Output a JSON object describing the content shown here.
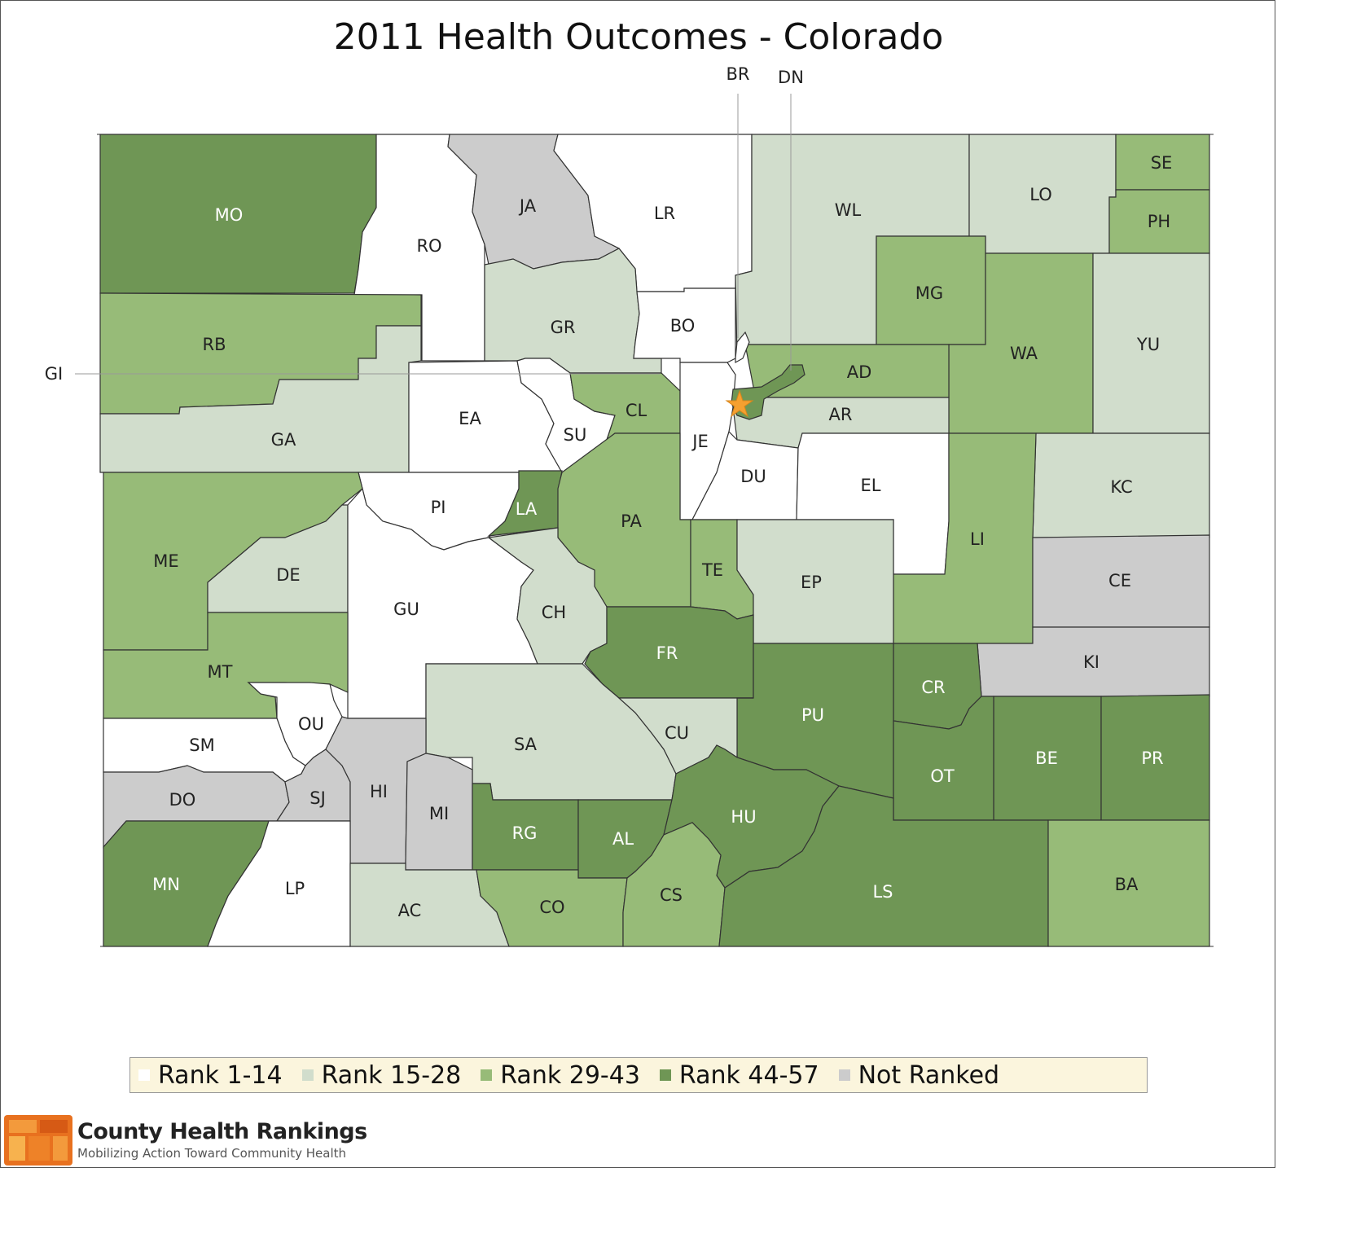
{
  "title": "2011 Health Outcomes - Colorado",
  "colors": {
    "rank_1_14": "#ffffff",
    "rank_15_28": "#d1ddcc",
    "rank_29_43": "#97bb78",
    "rank_44_57": "#6f9655",
    "not_ranked": "#cccccc",
    "star": "#f5a030",
    "border": "#333333"
  },
  "legend": [
    {
      "label": "Rank 1-14",
      "color": "#ffffff"
    },
    {
      "label": "Rank 15-28",
      "color": "#d1ddcc"
    },
    {
      "label": "Rank 29-43",
      "color": "#97bb78"
    },
    {
      "label": "Rank 44-57",
      "color": "#6f9655"
    },
    {
      "label": "Not Ranked",
      "color": "#cccccc"
    }
  ],
  "callouts": {
    "br": "BR",
    "dn": "DN",
    "gi": "GI"
  },
  "counties": [
    {
      "code": "MO",
      "rank_class": "Rank 44-57"
    },
    {
      "code": "RO",
      "rank_class": "Rank 1-14"
    },
    {
      "code": "JA",
      "rank_class": "Not Ranked"
    },
    {
      "code": "LR",
      "rank_class": "Rank 1-14"
    },
    {
      "code": "WL",
      "rank_class": "Rank 15-28"
    },
    {
      "code": "LO",
      "rank_class": "Rank 15-28"
    },
    {
      "code": "SE",
      "rank_class": "Rank 29-43"
    },
    {
      "code": "PH",
      "rank_class": "Rank 29-43"
    },
    {
      "code": "RB",
      "rank_class": "Rank 29-43"
    },
    {
      "code": "GR",
      "rank_class": "Rank 15-28"
    },
    {
      "code": "BO",
      "rank_class": "Rank 1-14"
    },
    {
      "code": "MG",
      "rank_class": "Rank 29-43"
    },
    {
      "code": "WA",
      "rank_class": "Rank 29-43"
    },
    {
      "code": "YU",
      "rank_class": "Rank 15-28"
    },
    {
      "code": "AD",
      "rank_class": "Rank 29-43"
    },
    {
      "code": "GA",
      "rank_class": "Rank 15-28"
    },
    {
      "code": "EA",
      "rank_class": "Rank 1-14"
    },
    {
      "code": "SU",
      "rank_class": "Rank 1-14"
    },
    {
      "code": "CL",
      "rank_class": "Rank 29-43"
    },
    {
      "code": "JE",
      "rank_class": "Rank 1-14"
    },
    {
      "code": "AR",
      "rank_class": "Rank 15-28"
    },
    {
      "code": "DU",
      "rank_class": "Rank 1-14"
    },
    {
      "code": "EL",
      "rank_class": "Rank 1-14"
    },
    {
      "code": "KC",
      "rank_class": "Rank 15-28"
    },
    {
      "code": "PI",
      "rank_class": "Rank 1-14"
    },
    {
      "code": "LA",
      "rank_class": "Rank 44-57"
    },
    {
      "code": "PA",
      "rank_class": "Rank 29-43"
    },
    {
      "code": "LI",
      "rank_class": "Rank 29-43"
    },
    {
      "code": "ME",
      "rank_class": "Rank 29-43"
    },
    {
      "code": "DE",
      "rank_class": "Rank 15-28"
    },
    {
      "code": "GU",
      "rank_class": "Rank 1-14"
    },
    {
      "code": "TE",
      "rank_class": "Rank 29-43"
    },
    {
      "code": "EP",
      "rank_class": "Rank 15-28"
    },
    {
      "code": "CE",
      "rank_class": "Not Ranked"
    },
    {
      "code": "CH",
      "rank_class": "Rank 15-28"
    },
    {
      "code": "FR",
      "rank_class": "Rank 44-57"
    },
    {
      "code": "KI",
      "rank_class": "Not Ranked"
    },
    {
      "code": "MT",
      "rank_class": "Rank 29-43"
    },
    {
      "code": "CR",
      "rank_class": "Rank 44-57"
    },
    {
      "code": "PU",
      "rank_class": "Rank 44-57"
    },
    {
      "code": "OU",
      "rank_class": "Rank 1-14"
    },
    {
      "code": "SM",
      "rank_class": "Rank 1-14"
    },
    {
      "code": "SA",
      "rank_class": "Rank 15-28"
    },
    {
      "code": "CU",
      "rank_class": "Rank 15-28"
    },
    {
      "code": "BE",
      "rank_class": "Rank 44-57"
    },
    {
      "code": "PR",
      "rank_class": "Rank 44-57"
    },
    {
      "code": "OT",
      "rank_class": "Rank 44-57"
    },
    {
      "code": "DO",
      "rank_class": "Not Ranked"
    },
    {
      "code": "SJ",
      "rank_class": "Not Ranked"
    },
    {
      "code": "HI",
      "rank_class": "Not Ranked"
    },
    {
      "code": "MI",
      "rank_class": "Not Ranked"
    },
    {
      "code": "RG",
      "rank_class": "Rank 44-57"
    },
    {
      "code": "AL",
      "rank_class": "Rank 44-57"
    },
    {
      "code": "HU",
      "rank_class": "Rank 44-57"
    },
    {
      "code": "MN",
      "rank_class": "Rank 44-57"
    },
    {
      "code": "LP",
      "rank_class": "Rank 1-14"
    },
    {
      "code": "AC",
      "rank_class": "Rank 15-28"
    },
    {
      "code": "CO",
      "rank_class": "Rank 29-43"
    },
    {
      "code": "CS",
      "rank_class": "Rank 29-43"
    },
    {
      "code": "LS",
      "rank_class": "Rank 44-57"
    },
    {
      "code": "BA",
      "rank_class": "Rank 29-43"
    },
    {
      "code": "BR",
      "rank_class": "Rank 1-14"
    },
    {
      "code": "DN",
      "rank_class": "Rank 44-57"
    }
  ],
  "brand": {
    "name": "County Health Rankings",
    "tagline": "Mobilizing Action Toward Community Health"
  }
}
